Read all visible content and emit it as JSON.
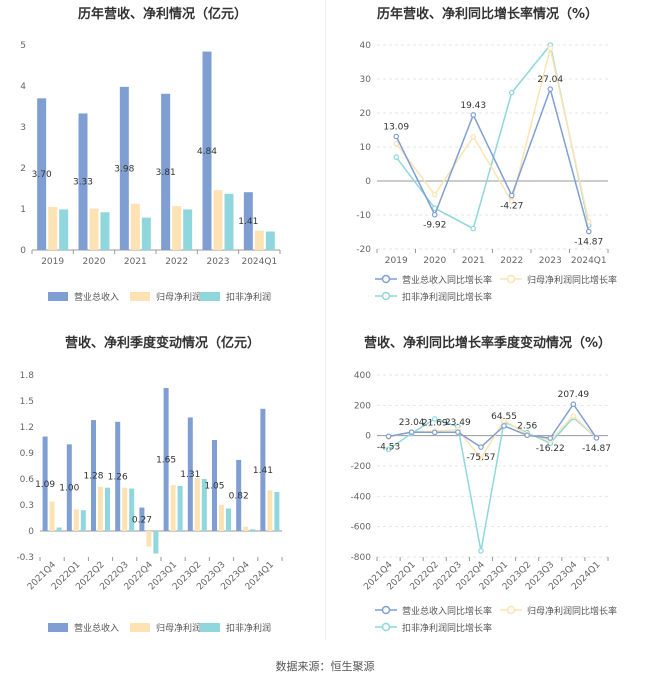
{
  "colors": {
    "revenue": "#7f9fd3",
    "netprofit": "#fde3b4",
    "deducted": "#8fd7dc",
    "axis": "#666666",
    "grid": "#e6e6e6"
  },
  "source_text": "数据来源：恒生聚源",
  "chart_data": [
    {
      "type": "bar",
      "title": "历年营收、净利情况（亿元）",
      "categories": [
        "2019",
        "2020",
        "2021",
        "2022",
        "2023",
        "2024Q1"
      ],
      "ylim": [
        0,
        5
      ],
      "yticks": [
        "0",
        "1",
        "2",
        "3",
        "4",
        "5"
      ],
      "series": [
        {
          "name": "营业总收入",
          "values": [
            3.7,
            3.33,
            3.98,
            3.81,
            4.84,
            1.41
          ]
        },
        {
          "name": "归母净利润",
          "values": [
            1.05,
            1.01,
            1.13,
            1.07,
            1.46,
            0.47
          ]
        },
        {
          "name": "扣非净利润",
          "values": [
            0.99,
            0.92,
            0.79,
            0.99,
            1.37,
            0.45
          ]
        }
      ],
      "data_labels": [
        "3.70",
        "3.33",
        "3.98",
        "3.81",
        "4.84",
        "1.41"
      ]
    },
    {
      "type": "line",
      "title": "历年营收、净利同比增长率情况（%）",
      "categories": [
        "2019",
        "2020",
        "2021",
        "2022",
        "2023",
        "2024Q1"
      ],
      "ylim": [
        -20,
        40
      ],
      "yticks": [
        "40",
        "30",
        "20",
        "10",
        "0",
        "-10",
        "-20"
      ],
      "series": [
        {
          "name": "营业总收入同比增长率",
          "values": [
            13.09,
            -9.92,
            19.43,
            -4.27,
            27.04,
            -14.87
          ]
        },
        {
          "name": "归母净利润同比增长率",
          "values": [
            11.0,
            -4.0,
            13.0,
            -6.0,
            39.0,
            -12.0
          ]
        },
        {
          "name": "扣非净利润同比增长率",
          "values": [
            7.0,
            -8.0,
            -14.0,
            26.0,
            40.0,
            -13.0
          ]
        }
      ],
      "data_labels": [
        "13.09",
        "-9.92",
        "19.43",
        "-4.27",
        "27.04",
        "-14.87"
      ]
    },
    {
      "type": "bar",
      "title": "营收、净利季度变动情况（亿元）",
      "categories": [
        "2021Q4",
        "2022Q1",
        "2022Q2",
        "2022Q3",
        "2022Q4",
        "2023Q1",
        "2023Q2",
        "2023Q3",
        "2023Q4",
        "2024Q1"
      ],
      "ylim": [
        -0.3,
        1.8
      ],
      "yticks": [
        "1.8",
        "1.5",
        "1.2",
        "0.9",
        "0.6",
        "0.3",
        "0",
        "-0.3"
      ],
      "series": [
        {
          "name": "营业总收入",
          "values": [
            1.09,
            1.0,
            1.28,
            1.26,
            0.27,
            1.65,
            1.31,
            1.05,
            0.82,
            1.41
          ]
        },
        {
          "name": "归母净利润",
          "values": [
            0.34,
            0.25,
            0.51,
            0.5,
            -0.18,
            0.53,
            0.61,
            0.3,
            0.05,
            0.47
          ]
        },
        {
          "name": "扣非净利润",
          "values": [
            0.04,
            0.24,
            0.5,
            0.49,
            -0.26,
            0.52,
            0.6,
            0.26,
            0.02,
            0.45
          ]
        }
      ],
      "data_labels": [
        "1.09",
        "1.00",
        "1.28",
        "1.26",
        "0.27",
        "1.65",
        "1.31",
        "1.05",
        "0.82",
        "1.41"
      ]
    },
    {
      "type": "line",
      "title": "营收、净利同比增长率季度变动情况（%）",
      "categories": [
        "2021Q4",
        "2022Q1",
        "2022Q2",
        "2022Q3",
        "2022Q4",
        "2023Q1",
        "2023Q2",
        "2023Q3",
        "2023Q4",
        "2024Q1"
      ],
      "ylim": [
        -800,
        400
      ],
      "yticks": [
        "400",
        "200",
        "0",
        "-200",
        "-400",
        "-600",
        "-800"
      ],
      "series": [
        {
          "name": "营业总收入同比增长率",
          "values": [
            -4.53,
            23.04,
            21.69,
            23.49,
            -75.57,
            64.55,
            2.56,
            -16.22,
            207.49,
            -14.87
          ]
        },
        {
          "name": "归母净利润同比增长率",
          "values": [
            -10,
            25,
            30,
            40,
            -150,
            100,
            10,
            -30,
            130,
            -12
          ]
        },
        {
          "name": "扣非净利润同比增长率",
          "values": [
            -90,
            15,
            110,
            60,
            -760,
            90,
            20,
            -50,
            120,
            -13
          ]
        }
      ],
      "data_labels": [
        "-4.53",
        "23.04",
        "21.69",
        "23.49",
        "-75.57",
        "64.55",
        "2.56",
        "-16.22",
        "207.49",
        "-14.87"
      ]
    }
  ]
}
